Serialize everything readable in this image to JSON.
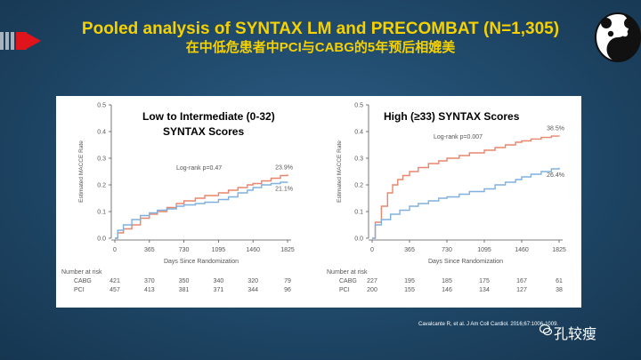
{
  "slide": {
    "title_line1": "Pooled analysis of SYNTAX LM and PRECOMBAT (N=1,305)",
    "title_line2": "在中低危患者中PCI与CABG的5年预后相媲美",
    "citation": "Cavalcante R, et al. J Am Coll Cardiol. 2016;67:1006-1009.",
    "watermark": "孔较瘦",
    "colors": {
      "title": "#f5d100",
      "cabg": "#e8856d",
      "pci": "#7fb0de",
      "accent_red": "#e0151b"
    }
  },
  "chart_data": [
    {
      "type": "line",
      "title_line1": "Low to Intermediate (0-32)",
      "title_line2": "SYNTAX Scores",
      "xlabel": "Days Since Randomization",
      "ylabel": "Estimated MACCE Rate",
      "xlim": [
        0,
        1825
      ],
      "ylim": [
        0,
        0.5
      ],
      "xticks": [
        0,
        365,
        730,
        1095,
        1460,
        1825
      ],
      "xtick_labels": [
        "0",
        "365",
        "730",
        "1095",
        "1460",
        "1825"
      ],
      "yticks": [
        0,
        0.1,
        0.2,
        0.3,
        0.4,
        0.5
      ],
      "ytick_labels": [
        "0.0",
        "0.1",
        "0.2",
        "0.3",
        "0.4",
        "0.5"
      ],
      "annotation": "Log-rank p=0.47",
      "series": [
        {
          "name": "CABG",
          "end_label": "23.9%",
          "x": [
            0,
            30,
            90,
            180,
            270,
            365,
            450,
            550,
            650,
            730,
            850,
            950,
            1095,
            1200,
            1300,
            1400,
            1460,
            1550,
            1650,
            1750,
            1825
          ],
          "y": [
            0.0,
            0.02,
            0.035,
            0.05,
            0.075,
            0.09,
            0.1,
            0.115,
            0.13,
            0.14,
            0.15,
            0.16,
            0.17,
            0.18,
            0.19,
            0.2,
            0.205,
            0.215,
            0.225,
            0.235,
            0.239
          ]
        },
        {
          "name": "PCI",
          "end_label": "21.1%",
          "x": [
            0,
            30,
            90,
            180,
            270,
            365,
            450,
            550,
            650,
            730,
            850,
            950,
            1095,
            1200,
            1300,
            1400,
            1460,
            1550,
            1650,
            1750,
            1825
          ],
          "y": [
            0.0,
            0.03,
            0.05,
            0.07,
            0.085,
            0.095,
            0.105,
            0.11,
            0.12,
            0.125,
            0.13,
            0.135,
            0.145,
            0.155,
            0.17,
            0.18,
            0.19,
            0.2,
            0.205,
            0.21,
            0.211
          ]
        }
      ],
      "risk_table": {
        "header": "Number at risk",
        "rows": [
          {
            "label": "CABG",
            "values": [
              "421",
              "370",
              "350",
              "340",
              "320",
              "79"
            ]
          },
          {
            "label": "PCI",
            "values": [
              "457",
              "413",
              "381",
              "371",
              "344",
              "96"
            ]
          }
        ]
      }
    },
    {
      "type": "line",
      "title": "High (≥33)  SYNTAX Scores",
      "xlabel": "Days Since Randomization",
      "ylabel": "Estimated MACCE Rate",
      "xlim": [
        0,
        1825
      ],
      "ylim": [
        0,
        0.5
      ],
      "xticks": [
        0,
        365,
        730,
        1095,
        1460,
        1825
      ],
      "xtick_labels": [
        "0",
        "365",
        "730",
        "1095",
        "1460",
        "1825"
      ],
      "yticks": [
        0,
        0.1,
        0.2,
        0.3,
        0.4,
        0.5
      ],
      "ytick_labels": [
        "0.0",
        "0.1",
        "0.2",
        "0.3",
        "0.4",
        "0.5"
      ],
      "annotation": "Log-rank p=0.007",
      "series": [
        {
          "name": "CABG",
          "end_label": "38.5%",
          "x": [
            0,
            30,
            90,
            150,
            200,
            250,
            300,
            365,
            450,
            550,
            650,
            730,
            850,
            950,
            1095,
            1200,
            1300,
            1400,
            1460,
            1550,
            1650,
            1750,
            1825
          ],
          "y": [
            0.0,
            0.06,
            0.12,
            0.17,
            0.2,
            0.22,
            0.235,
            0.25,
            0.265,
            0.28,
            0.29,
            0.3,
            0.31,
            0.32,
            0.33,
            0.34,
            0.35,
            0.36,
            0.365,
            0.372,
            0.378,
            0.383,
            0.385
          ]
        },
        {
          "name": "PCI",
          "end_label": "26.4%",
          "x": [
            0,
            30,
            90,
            180,
            270,
            365,
            450,
            550,
            650,
            730,
            850,
            950,
            1095,
            1200,
            1300,
            1400,
            1460,
            1550,
            1650,
            1750,
            1825
          ],
          "y": [
            0.0,
            0.05,
            0.07,
            0.09,
            0.105,
            0.12,
            0.13,
            0.14,
            0.15,
            0.155,
            0.165,
            0.175,
            0.185,
            0.2,
            0.21,
            0.22,
            0.23,
            0.24,
            0.25,
            0.26,
            0.264
          ]
        }
      ],
      "risk_table": {
        "header": "Number at risk",
        "rows": [
          {
            "label": "CABG",
            "values": [
              "227",
              "195",
              "185",
              "175",
              "167",
              "61"
            ]
          },
          {
            "label": "PCI",
            "values": [
              "200",
              "155",
              "146",
              "134",
              "127",
              "38"
            ]
          }
        ]
      }
    }
  ]
}
